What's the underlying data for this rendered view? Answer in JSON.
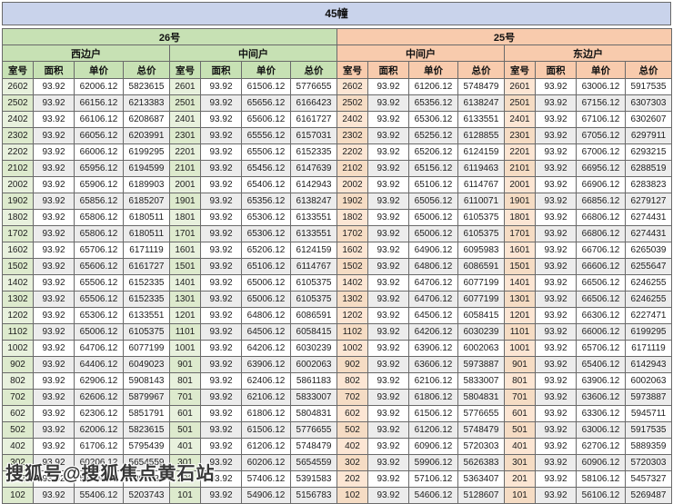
{
  "page": {
    "title_bar": "45幢",
    "watermark": "搜狐号@搜狐焦点黄石站"
  },
  "colors": {
    "title_bg": "#c9d3eb",
    "building26_bg": "#c7e1b4",
    "building25_bg": "#f8cbad",
    "room_green_tint": "#e8f1dd",
    "room_peach_tint": "#fce6d4",
    "alt_row": "#ececec",
    "border": "#6a6a6a"
  },
  "table": {
    "buildings": [
      {
        "label": "26号"
      },
      {
        "label": "25号"
      }
    ],
    "unit_headers": [
      "西边户",
      "中间户",
      "中间户",
      "东边户"
    ],
    "column_headers": [
      "室号",
      "面积",
      "单价",
      "总价"
    ],
    "unit_columns": [
      {
        "building": "26号",
        "unit": "西边户",
        "rows": [
          [
            "2602",
            "93.92",
            "62006.12",
            "5823615"
          ],
          [
            "2502",
            "93.92",
            "66156.12",
            "6213383"
          ],
          [
            "2402",
            "93.92",
            "66106.12",
            "6208687"
          ],
          [
            "2302",
            "93.92",
            "66056.12",
            "6203991"
          ],
          [
            "2202",
            "93.92",
            "66006.12",
            "6199295"
          ],
          [
            "2102",
            "93.92",
            "65956.12",
            "6194599"
          ],
          [
            "2002",
            "93.92",
            "65906.12",
            "6189903"
          ],
          [
            "1902",
            "93.92",
            "65856.12",
            "6185207"
          ],
          [
            "1802",
            "93.92",
            "65806.12",
            "6180511"
          ],
          [
            "1702",
            "93.92",
            "65806.12",
            "6180511"
          ],
          [
            "1602",
            "93.92",
            "65706.12",
            "6171119"
          ],
          [
            "1502",
            "93.92",
            "65606.12",
            "6161727"
          ],
          [
            "1402",
            "93.92",
            "65506.12",
            "6152335"
          ],
          [
            "1302",
            "93.92",
            "65506.12",
            "6152335"
          ],
          [
            "1202",
            "93.92",
            "65306.12",
            "6133551"
          ],
          [
            "1102",
            "93.92",
            "65006.12",
            "6105375"
          ],
          [
            "1002",
            "93.92",
            "64706.12",
            "6077199"
          ],
          [
            "902",
            "93.92",
            "64406.12",
            "6049023"
          ],
          [
            "802",
            "93.92",
            "62906.12",
            "5908143"
          ],
          [
            "702",
            "93.92",
            "62606.12",
            "5879967"
          ],
          [
            "602",
            "93.92",
            "62306.12",
            "5851791"
          ],
          [
            "502",
            "93.92",
            "62006.12",
            "5823615"
          ],
          [
            "402",
            "93.92",
            "61706.12",
            "5795439"
          ],
          [
            "302",
            "93.92",
            "60206.12",
            "5654559"
          ],
          [
            "202",
            "93.92",
            "57406.12",
            "5391583"
          ],
          [
            "102",
            "93.92",
            "55406.12",
            "5203743"
          ]
        ]
      },
      {
        "building": "26号",
        "unit": "中间户",
        "rows": [
          [
            "2601",
            "93.92",
            "61506.12",
            "5776655"
          ],
          [
            "2501",
            "93.92",
            "65656.12",
            "6166423"
          ],
          [
            "2401",
            "93.92",
            "65606.12",
            "6161727"
          ],
          [
            "2301",
            "93.92",
            "65556.12",
            "6157031"
          ],
          [
            "2201",
            "93.92",
            "65506.12",
            "6152335"
          ],
          [
            "2101",
            "93.92",
            "65456.12",
            "6147639"
          ],
          [
            "2001",
            "93.92",
            "65406.12",
            "6142943"
          ],
          [
            "1901",
            "93.92",
            "65356.12",
            "6138247"
          ],
          [
            "1801",
            "93.92",
            "65306.12",
            "6133551"
          ],
          [
            "1701",
            "93.92",
            "65306.12",
            "6133551"
          ],
          [
            "1601",
            "93.92",
            "65206.12",
            "6124159"
          ],
          [
            "1501",
            "93.92",
            "65106.12",
            "6114767"
          ],
          [
            "1401",
            "93.92",
            "65006.12",
            "6105375"
          ],
          [
            "1301",
            "93.92",
            "65006.12",
            "6105375"
          ],
          [
            "1201",
            "93.92",
            "64806.12",
            "6086591"
          ],
          [
            "1101",
            "93.92",
            "64506.12",
            "6058415"
          ],
          [
            "1001",
            "93.92",
            "64206.12",
            "6030239"
          ],
          [
            "901",
            "93.92",
            "63906.12",
            "6002063"
          ],
          [
            "801",
            "93.92",
            "62406.12",
            "5861183"
          ],
          [
            "701",
            "93.92",
            "62106.12",
            "5833007"
          ],
          [
            "601",
            "93.92",
            "61806.12",
            "5804831"
          ],
          [
            "501",
            "93.92",
            "61506.12",
            "5776655"
          ],
          [
            "401",
            "93.92",
            "61206.12",
            "5748479"
          ],
          [
            "301",
            "93.92",
            "60206.12",
            "5654559"
          ],
          [
            "201",
            "93.92",
            "57406.12",
            "5391583"
          ],
          [
            "101",
            "93.92",
            "54906.12",
            "5156783"
          ]
        ]
      },
      {
        "building": "25号",
        "unit": "中间户",
        "rows": [
          [
            "2602",
            "93.92",
            "61206.12",
            "5748479"
          ],
          [
            "2502",
            "93.92",
            "65356.12",
            "6138247"
          ],
          [
            "2402",
            "93.92",
            "65306.12",
            "6133551"
          ],
          [
            "2302",
            "93.92",
            "65256.12",
            "6128855"
          ],
          [
            "2202",
            "93.92",
            "65206.12",
            "6124159"
          ],
          [
            "2102",
            "93.92",
            "65156.12",
            "6119463"
          ],
          [
            "2002",
            "93.92",
            "65106.12",
            "6114767"
          ],
          [
            "1902",
            "93.92",
            "65056.12",
            "6110071"
          ],
          [
            "1802",
            "93.92",
            "65006.12",
            "6105375"
          ],
          [
            "1702",
            "93.92",
            "65006.12",
            "6105375"
          ],
          [
            "1602",
            "93.92",
            "64906.12",
            "6095983"
          ],
          [
            "1502",
            "93.92",
            "64806.12",
            "6086591"
          ],
          [
            "1402",
            "93.92",
            "64706.12",
            "6077199"
          ],
          [
            "1302",
            "93.92",
            "64706.12",
            "6077199"
          ],
          [
            "1202",
            "93.92",
            "64506.12",
            "6058415"
          ],
          [
            "1102",
            "93.92",
            "64206.12",
            "6030239"
          ],
          [
            "1002",
            "93.92",
            "63906.12",
            "6002063"
          ],
          [
            "902",
            "93.92",
            "63606.12",
            "5973887"
          ],
          [
            "802",
            "93.92",
            "62106.12",
            "5833007"
          ],
          [
            "702",
            "93.92",
            "61806.12",
            "5804831"
          ],
          [
            "602",
            "93.92",
            "61506.12",
            "5776655"
          ],
          [
            "502",
            "93.92",
            "61206.12",
            "5748479"
          ],
          [
            "402",
            "93.92",
            "60906.12",
            "5720303"
          ],
          [
            "302",
            "93.92",
            "59906.12",
            "5626383"
          ],
          [
            "202",
            "93.92",
            "57106.12",
            "5363407"
          ],
          [
            "102",
            "93.92",
            "54606.12",
            "5128607"
          ]
        ]
      },
      {
        "building": "25号",
        "unit": "东边户",
        "rows": [
          [
            "2601",
            "93.92",
            "63006.12",
            "5917535"
          ],
          [
            "2501",
            "93.92",
            "67156.12",
            "6307303"
          ],
          [
            "2401",
            "93.92",
            "67106.12",
            "6302607"
          ],
          [
            "2301",
            "93.92",
            "67056.12",
            "6297911"
          ],
          [
            "2201",
            "93.92",
            "67006.12",
            "6293215"
          ],
          [
            "2101",
            "93.92",
            "66956.12",
            "6288519"
          ],
          [
            "2001",
            "93.92",
            "66906.12",
            "6283823"
          ],
          [
            "1901",
            "93.92",
            "66856.12",
            "6279127"
          ],
          [
            "1801",
            "93.92",
            "66806.12",
            "6274431"
          ],
          [
            "1701",
            "93.92",
            "66806.12",
            "6274431"
          ],
          [
            "1601",
            "93.92",
            "66706.12",
            "6265039"
          ],
          [
            "1501",
            "93.92",
            "66606.12",
            "6255647"
          ],
          [
            "1401",
            "93.92",
            "66506.12",
            "6246255"
          ],
          [
            "1301",
            "93.92",
            "66506.12",
            "6246255"
          ],
          [
            "1201",
            "93.92",
            "66306.12",
            "6227471"
          ],
          [
            "1101",
            "93.92",
            "66006.12",
            "6199295"
          ],
          [
            "1001",
            "93.92",
            "65706.12",
            "6171119"
          ],
          [
            "901",
            "93.92",
            "65406.12",
            "6142943"
          ],
          [
            "801",
            "93.92",
            "63906.12",
            "6002063"
          ],
          [
            "701",
            "93.92",
            "63606.12",
            "5973887"
          ],
          [
            "601",
            "93.92",
            "63306.12",
            "5945711"
          ],
          [
            "501",
            "93.92",
            "63006.12",
            "5917535"
          ],
          [
            "401",
            "93.92",
            "62706.12",
            "5889359"
          ],
          [
            "301",
            "93.92",
            "60906.12",
            "5720303"
          ],
          [
            "201",
            "93.92",
            "58106.12",
            "5457327"
          ],
          [
            "101",
            "93.92",
            "56106.12",
            "5269487"
          ]
        ]
      }
    ]
  }
}
